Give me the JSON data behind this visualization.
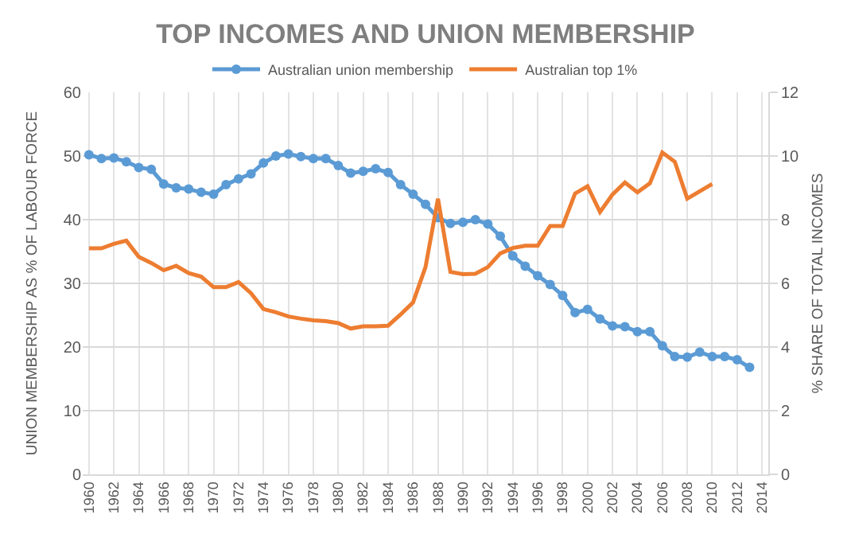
{
  "chart_data": {
    "type": "line",
    "title": "TOP INCOMES AND UNION MEMBERSHIP",
    "ylabel": "UNION MEMBERSHIP AS % OF LABOUR FORCE",
    "y2label": "% SHARE OF TOTAL INCOMES",
    "x": [
      1960,
      1961,
      1962,
      1963,
      1964,
      1965,
      1966,
      1967,
      1968,
      1969,
      1970,
      1971,
      1972,
      1973,
      1974,
      1975,
      1976,
      1977,
      1978,
      1979,
      1980,
      1981,
      1982,
      1983,
      1984,
      1985,
      1986,
      1987,
      1988,
      1989,
      1990,
      1991,
      1992,
      1993,
      1994,
      1995,
      1996,
      1997,
      1998,
      1999,
      2000,
      2001,
      2002,
      2003,
      2004,
      2005,
      2006,
      2007,
      2008,
      2009,
      2010,
      2011,
      2012,
      2013
    ],
    "series": [
      {
        "name": "Australian union membership",
        "color": "#5b9bd5",
        "marker": "circle",
        "values": [
          50.2,
          49.6,
          49.7,
          49.1,
          48.2,
          47.9,
          45.6,
          45.0,
          44.8,
          44.3,
          44.0,
          45.5,
          46.4,
          47.2,
          48.9,
          50.0,
          50.3,
          49.9,
          49.6,
          49.6,
          48.5,
          47.3,
          47.6,
          48.0,
          47.4,
          45.5,
          44.0,
          42.4,
          40.3,
          39.4,
          39.6,
          40.0,
          39.3,
          37.4,
          34.3,
          32.7,
          31.2,
          29.8,
          28.1,
          25.4,
          25.9,
          24.4,
          23.3,
          23.2,
          22.4,
          22.4,
          20.2,
          18.5,
          18.4,
          19.2,
          18.5,
          18.5,
          18.0,
          16.8
        ]
      },
      {
        "name": "Australian top 1%",
        "color": "#ed7d31",
        "axis": "y2",
        "marker": "none",
        "values": [
          7.1,
          7.1,
          7.24,
          7.34,
          6.83,
          6.64,
          6.41,
          6.55,
          6.32,
          6.21,
          5.88,
          5.88,
          6.04,
          5.69,
          5.19,
          5.09,
          4.96,
          4.89,
          4.84,
          4.81,
          4.75,
          4.58,
          4.65,
          4.65,
          4.67,
          5.02,
          5.4,
          6.51,
          8.66,
          6.36,
          6.29,
          6.3,
          6.51,
          6.94,
          7.11,
          7.18,
          7.18,
          7.8,
          7.8,
          8.82,
          9.05,
          8.24,
          8.79,
          9.17,
          8.86,
          9.14,
          10.11,
          9.82,
          8.66,
          8.89,
          9.12,
          null,
          null,
          null
        ]
      }
    ],
    "xlim": [
      1959.5,
      2014.5
    ],
    "xticks": [
      1960,
      1962,
      1964,
      1966,
      1968,
      1970,
      1972,
      1974,
      1976,
      1978,
      1980,
      1982,
      1984,
      1986,
      1988,
      1990,
      1992,
      1994,
      1996,
      1998,
      2000,
      2002,
      2004,
      2006,
      2008,
      2010,
      2012,
      2014
    ],
    "ylim": [
      0,
      60
    ],
    "yticks": [
      0,
      10,
      20,
      30,
      40,
      50,
      60
    ],
    "y2lim": [
      0,
      12
    ],
    "y2ticks": [
      0,
      2,
      4,
      6,
      8,
      10,
      12
    ],
    "grid": true,
    "legend": "top",
    "line_style": "solid"
  }
}
